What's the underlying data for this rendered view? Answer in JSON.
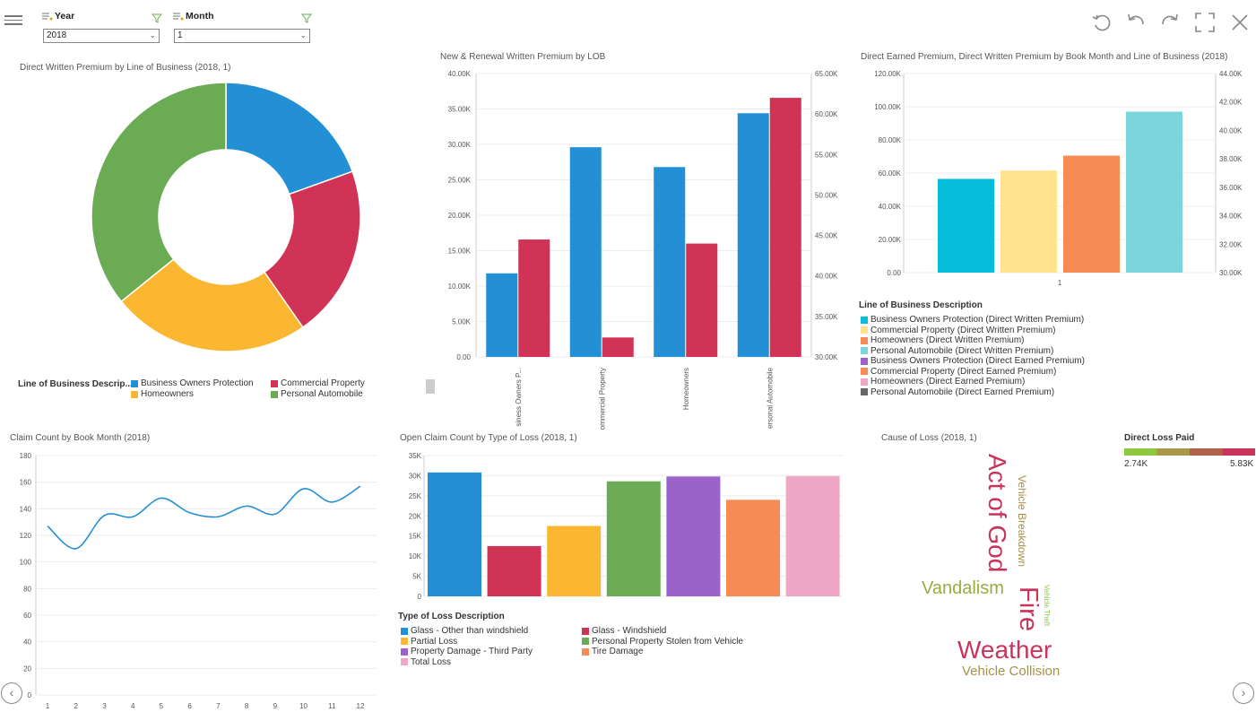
{
  "filters": {
    "year": {
      "label": "Year",
      "value": "2018"
    },
    "month": {
      "label": "Month",
      "value": "1"
    }
  },
  "toolbar": {
    "icons": [
      "refresh-icon",
      "undo-icon",
      "redo-icon",
      "fullscreen-icon",
      "close-icon"
    ]
  },
  "colors": {
    "blue": "#2390d6",
    "red": "#d03355",
    "yellow": "#fbb731",
    "green": "#6aab54",
    "purple": "#9b63c9",
    "orange": "#f68b55",
    "pink": "#eea7c5",
    "cyan": "#06bddc",
    "lightyellow": "#ffe38d",
    "teal": "#7bd5dc",
    "gray": "#666666"
  },
  "donut": {
    "title": "Direct Written Premium by Line of Business (2018, 1)",
    "legend_title": "Line of Business Descrip...",
    "legend": [
      "Business Owners Protection",
      "Commercial Property",
      "Homeowners",
      "Personal Automobile"
    ],
    "chart_data": {
      "type": "pie",
      "labels": [
        "Business Owners Protection",
        "Commercial Property",
        "Homeowners",
        "Personal Automobile"
      ],
      "values": [
        19.5,
        20.8,
        23.9,
        35.8
      ]
    }
  },
  "lob": {
    "title": "New & Renewal Written Premium by LOB",
    "left_ticks": [
      "40.00K",
      "35.00K",
      "30.00K",
      "25.00K",
      "20.00K",
      "15.00K",
      "10.00K",
      "5.00K",
      "0.00"
    ],
    "right_ticks": [
      "65.00K",
      "60.00K",
      "55.00K",
      "50.00K",
      "45.00K",
      "40.00K",
      "35.00K",
      "30.00K"
    ],
    "categories": [
      "siness Owners P...",
      "ommercial Property",
      "Homeowners",
      "ersonal Automobile"
    ],
    "chart_data": {
      "type": "bar",
      "categories": [
        "Business Owners Protection",
        "Commercial Property",
        "Homeowners",
        "Personal Automobile"
      ],
      "series": [
        {
          "name": "New",
          "axis": "left",
          "values": [
            11800,
            29600,
            26800,
            34400
          ]
        },
        {
          "name": "Renewal",
          "axis": "right",
          "values": [
            44500,
            32400,
            44000,
            62000
          ]
        }
      ],
      "ylim_left": [
        0,
        40000
      ],
      "ylim_right": [
        30000,
        65000
      ]
    }
  },
  "earned": {
    "title": "Direct Earned Premium, Direct Written Premium by Book Month and Line of Business (2018)",
    "left_ticks": [
      "120.00K",
      "100.00K",
      "80.00K",
      "60.00K",
      "40.00K",
      "20.00K",
      "0.00"
    ],
    "right_ticks": [
      "44.00K",
      "42.00K",
      "40.00K",
      "38.00K",
      "36.00K",
      "34.00K",
      "32.00K",
      "30.00K"
    ],
    "xlabel": "1",
    "legend_title": "Line of Business Description",
    "legend": [
      "Business Owners Protection (Direct Written Premium)",
      "Commercial Property (Direct Written Premium)",
      "Homeowners (Direct Written Premium)",
      "Personal Automobile (Direct Written Premium)",
      "Business Owners Protection (Direct Earned Premium)",
      "Commercial Property (Direct Earned Premium)",
      "Homeowners (Direct Earned Premium)",
      "Personal Automobile (Direct Earned Premium)"
    ],
    "chart_data": {
      "type": "bar",
      "categories": [
        "1"
      ],
      "series": [
        {
          "name": "Business Owners Protection (Direct Written Premium)",
          "values": [
            56500
          ]
        },
        {
          "name": "Commercial Property (Direct Written Premium)",
          "values": [
            61500
          ]
        },
        {
          "name": "Homeowners (Direct Written Premium)",
          "values": [
            70500
          ]
        },
        {
          "name": "Personal Automobile (Direct Written Premium)",
          "values": [
            97000
          ]
        }
      ],
      "ylim_left": [
        0,
        120000
      ],
      "ylim_right": [
        30000,
        44000
      ]
    }
  },
  "claims": {
    "title": "Claim Count by Book Month (2018)",
    "y_ticks": [
      "180",
      "160",
      "140",
      "120",
      "100",
      "80",
      "60",
      "40",
      "20",
      "0"
    ],
    "x_ticks": [
      "1",
      "2",
      "3",
      "4",
      "5",
      "6",
      "7",
      "8",
      "9",
      "10",
      "11",
      "12"
    ],
    "chart_data": {
      "type": "line",
      "x": [
        1,
        2,
        3,
        4,
        5,
        6,
        7,
        8,
        9,
        10,
        11,
        12
      ],
      "values": [
        127,
        110,
        135,
        134,
        148,
        137,
        134,
        142,
        136,
        155,
        145,
        157
      ],
      "ylim": [
        0,
        180
      ]
    }
  },
  "open": {
    "title": "Open Claim Count by Type of Loss (2018, 1)",
    "y_ticks": [
      "35K",
      "30K",
      "25K",
      "20K",
      "15K",
      "10K",
      "5K",
      "0"
    ],
    "legend_title": "Type of Loss Description",
    "legend": [
      "Glass - Other than windshield",
      "Glass - Windshield",
      "Partial Loss",
      "Personal Property Stolen from Vehicle",
      "Property Damage - Third Party",
      "Tire Damage",
      "Total Loss"
    ],
    "chart_data": {
      "type": "bar",
      "categories": [
        "Glass - Other than windshield",
        "Glass - Windshield",
        "Partial Loss",
        "Personal Property Stolen from Vehicle",
        "Property Damage - Third Party",
        "Tire Damage",
        "Total Loss"
      ],
      "values": [
        30800,
        12500,
        17500,
        28600,
        29800,
        24000,
        29900
      ],
      "ylim": [
        0,
        35000
      ]
    }
  },
  "cause": {
    "title": "Cause of Loss (2018, 1)",
    "legend_title": "Direct Loss Paid",
    "min_label": "2.74K",
    "max_label": "5.83K",
    "words": [
      "Act of God",
      "Vehicle Breakdown",
      "Vandalism",
      "Fire",
      "Vehicle Theft",
      "Weather",
      "Vehicle Collision"
    ]
  }
}
